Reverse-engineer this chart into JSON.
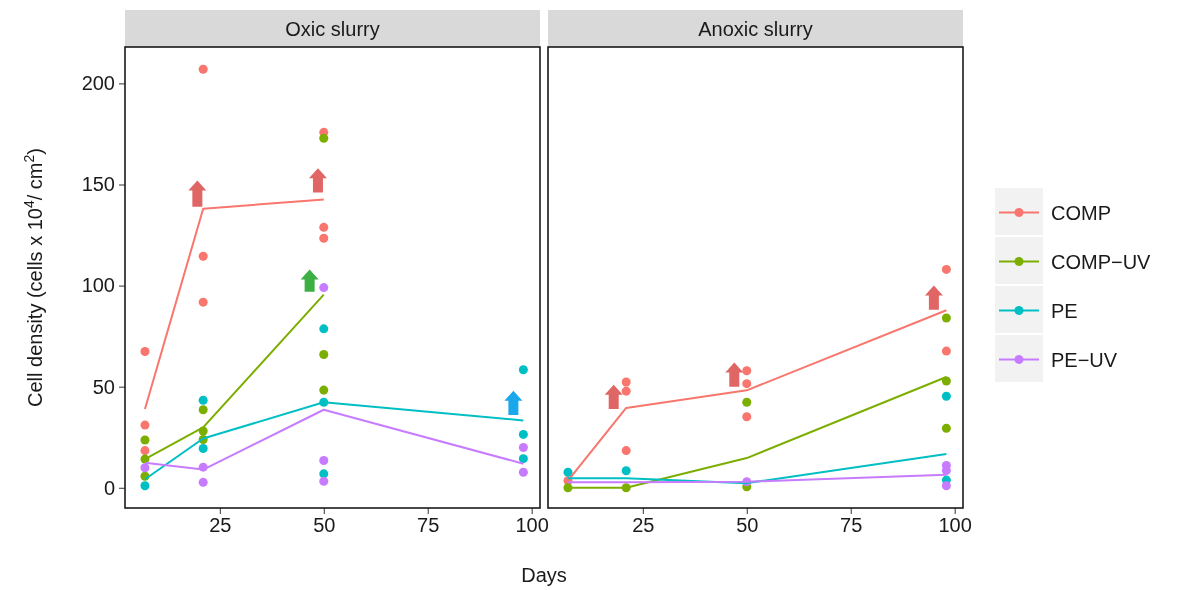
{
  "chart_data": [
    {
      "type": "scatter",
      "title": "Oxic slurry",
      "xlabel": "Days",
      "ylabel": "Cell density (cells x 10$^{4}$/ cm$^{2}$)",
      "xlim": [
        2.2,
        102
      ],
      "xticks": [
        25,
        50,
        75,
        100
      ],
      "ylim": [
        -10,
        218
      ],
      "yticks": [
        0,
        50,
        100,
        150,
        200
      ],
      "legend": "right",
      "series": [
        {
          "name": "COMP",
          "color": "#f8766d",
          "marker": "circle",
          "x": [
            7,
            7,
            7,
            21,
            21,
            21,
            50,
            50,
            50
          ],
          "values": [
            67.4,
            31,
            18.4,
            207,
            114.5,
            91.8,
            175.8,
            128.8,
            123.4
          ]
        },
        {
          "name": "COMP−UV",
          "color": "#7cae00",
          "marker": "circle",
          "x": [
            7,
            7,
            7,
            21,
            21,
            21,
            50,
            50,
            50
          ],
          "values": [
            23.6,
            14.2,
            5.7,
            38.6,
            28.1,
            23.9,
            172.9,
            65.9,
            48.3
          ]
        },
        {
          "name": "PE",
          "color": "#00bfc4",
          "marker": "circle",
          "x": [
            7,
            21,
            21,
            50,
            50,
            50,
            98,
            98,
            98
          ],
          "values": [
            1,
            43.3,
            19.4,
            78.6,
            42.3,
            6.9,
            58.4,
            26.4,
            14.4
          ]
        },
        {
          "name": "PE−UV",
          "color": "#c77cff",
          "marker": "circle",
          "x": [
            7,
            21,
            21,
            50,
            50,
            50,
            98,
            98
          ],
          "values": [
            9.9,
            10.2,
            2.7,
            99,
            13.5,
            3.2,
            19.9,
            7.7
          ]
        },
        {
          "type": "line",
          "color": "#f8766d",
          "marker": "none",
          "x": [
            7,
            21,
            50
          ],
          "values": [
            39,
            138,
            142.6
          ]
        },
        {
          "type": "line",
          "color": "#7cae00",
          "marker": "none",
          "x": [
            7,
            21,
            50
          ],
          "values": [
            14.2,
            29.9,
            95.5
          ]
        },
        {
          "type": "line",
          "color": "#00bfc4",
          "marker": "none",
          "x": [
            7,
            21,
            50,
            98
          ],
          "values": [
            4.2,
            24.4,
            42.3,
            33.3
          ]
        },
        {
          "type": "line",
          "color": "#c77cff",
          "marker": "none",
          "x": [
            7,
            21,
            50,
            98
          ],
          "values": [
            12.4,
            9,
            38.6,
            11.9
          ]
        }
      ]
    },
    {
      "type": "scatter",
      "title": "Anoxic slurry",
      "xlim": [
        2.2,
        102
      ],
      "xticks": [
        25,
        50,
        75,
        100
      ],
      "ylim": [
        -10,
        218
      ],
      "yticks": [
        0,
        50,
        100,
        150,
        200
      ],
      "tick_labels": "x",
      "series": [
        {
          "color": "#f8766d",
          "marker": "circle",
          "x": [
            7,
            21,
            21,
            21,
            50,
            50,
            50,
            98,
            98
          ],
          "values": [
            3.5,
            52.3,
            47.8,
            18.4,
            57.9,
            51.5,
            35.1,
            108,
            67.6
          ]
        },
        {
          "color": "#7cae00",
          "marker": "circle",
          "x": [
            7,
            21,
            50,
            50,
            98,
            98,
            98
          ],
          "values": [
            0,
            0,
            42.3,
            0.5,
            84,
            52.8,
            29.4
          ]
        },
        {
          "color": "#00bfc4",
          "marker": "circle",
          "x": [
            7,
            21,
            98,
            98
          ],
          "values": [
            7.7,
            8.4,
            45.3,
            3.8
          ]
        },
        {
          "color": "#c77cff",
          "marker": "circle",
          "x": [
            50,
            98,
            98,
            98
          ],
          "values": [
            3,
            11,
            8.5,
            1
          ]
        },
        {
          "type": "line",
          "color": "#f8766d",
          "marker": "none",
          "x": [
            7,
            21,
            50,
            98
          ],
          "values": [
            3.5,
            39.5,
            48.2,
            87.8
          ]
        },
        {
          "type": "line",
          "color": "#7cae00",
          "marker": "none",
          "x": [
            7,
            21,
            50,
            98
          ],
          "values": [
            0,
            0,
            14.7,
            54.8
          ]
        },
        {
          "type": "line",
          "color": "#00bfc4",
          "marker": "none",
          "x": [
            7,
            21,
            50,
            98
          ],
          "values": [
            4.7,
            4.7,
            2.3,
            16.7
          ]
        },
        {
          "type": "line",
          "color": "#c77cff",
          "marker": "none",
          "x": [
            7,
            21,
            50,
            98
          ],
          "values": [
            2.7,
            2.7,
            3,
            6.4
          ]
        }
      ]
    }
  ]
}
